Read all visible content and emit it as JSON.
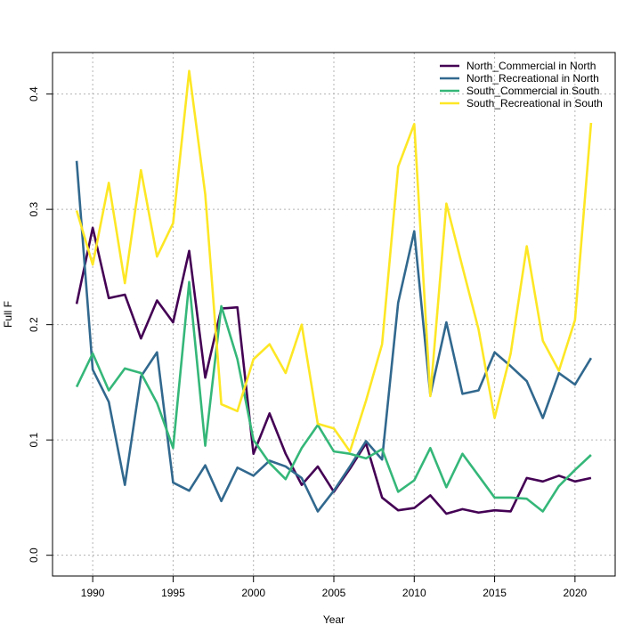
{
  "chart_data": {
    "type": "line",
    "title": "",
    "xlabel": "Year",
    "ylabel": "Full F",
    "xlim": [
      1988.2,
      1977.8
    ],
    "xlim_note": "",
    "x_range": [
      1987.5,
      2022.5
    ],
    "ylim": [
      -0.018,
      0.436
    ],
    "x_ticks": [
      1990,
      1995,
      2000,
      2005,
      2010,
      2015,
      2020
    ],
    "x_tick_labels": [
      "1990",
      "1995",
      "2000",
      "2005",
      "2010",
      "2015",
      "2020"
    ],
    "y_ticks": [
      0.0,
      0.1,
      0.2,
      0.3,
      0.4
    ],
    "y_tick_labels": [
      "0.0",
      "0.1",
      "0.2",
      "0.3",
      "0.4"
    ],
    "grid": true,
    "legend_position": "top-right",
    "x": [
      1989,
      1990,
      1991,
      1992,
      1993,
      1994,
      1995,
      1996,
      1997,
      1998,
      1999,
      2000,
      2001,
      2002,
      2003,
      2004,
      2005,
      2006,
      2007,
      2008,
      2009,
      2010,
      2011,
      2012,
      2013,
      2014,
      2015,
      2016,
      2017,
      2018,
      2019,
      2020,
      2021
    ],
    "series": [
      {
        "name": "North_Commercial in North",
        "color": "#440154",
        "values": [
          0.218,
          0.284,
          0.223,
          0.226,
          0.188,
          0.221,
          0.202,
          0.264,
          0.154,
          0.214,
          0.215,
          0.088,
          0.123,
          0.088,
          0.061,
          0.077,
          0.055,
          0.075,
          0.097,
          0.05,
          0.039,
          0.041,
          0.052,
          0.036,
          0.04,
          0.037,
          0.039,
          0.038,
          0.067,
          0.064,
          0.069,
          0.064,
          0.067
        ]
      },
      {
        "name": "North_Recreational in North",
        "color": "#31688e",
        "values": [
          0.342,
          0.161,
          0.133,
          0.061,
          0.155,
          0.176,
          0.063,
          0.056,
          0.078,
          0.047,
          0.076,
          0.069,
          0.082,
          0.077,
          0.067,
          0.038,
          0.056,
          0.077,
          0.099,
          0.083,
          0.219,
          0.281,
          0.139,
          0.202,
          0.14,
          0.143,
          0.176,
          0.164,
          0.151,
          0.119,
          0.158,
          0.148,
          0.171
        ]
      },
      {
        "name": "South_Commercial in South",
        "color": "#35b779",
        "values": [
          0.146,
          0.175,
          0.143,
          0.162,
          0.158,
          0.132,
          0.093,
          0.237,
          0.095,
          0.216,
          0.17,
          0.1,
          0.08,
          0.066,
          0.093,
          0.113,
          0.09,
          0.088,
          0.084,
          0.092,
          0.055,
          0.065,
          0.093,
          0.059,
          0.088,
          0.069,
          0.05,
          0.05,
          0.049,
          0.038,
          0.06,
          0.074,
          0.087
        ]
      },
      {
        "name": "South_Recreational in South",
        "color": "#fde725",
        "values": [
          0.299,
          0.252,
          0.323,
          0.236,
          0.334,
          0.259,
          0.288,
          0.42,
          0.313,
          0.131,
          0.125,
          0.17,
          0.183,
          0.158,
          0.2,
          0.114,
          0.11,
          0.09,
          0.134,
          0.183,
          0.337,
          0.374,
          0.138,
          0.305,
          0.25,
          0.196,
          0.119,
          0.175,
          0.268,
          0.186,
          0.16,
          0.204,
          0.375
        ]
      }
    ]
  }
}
